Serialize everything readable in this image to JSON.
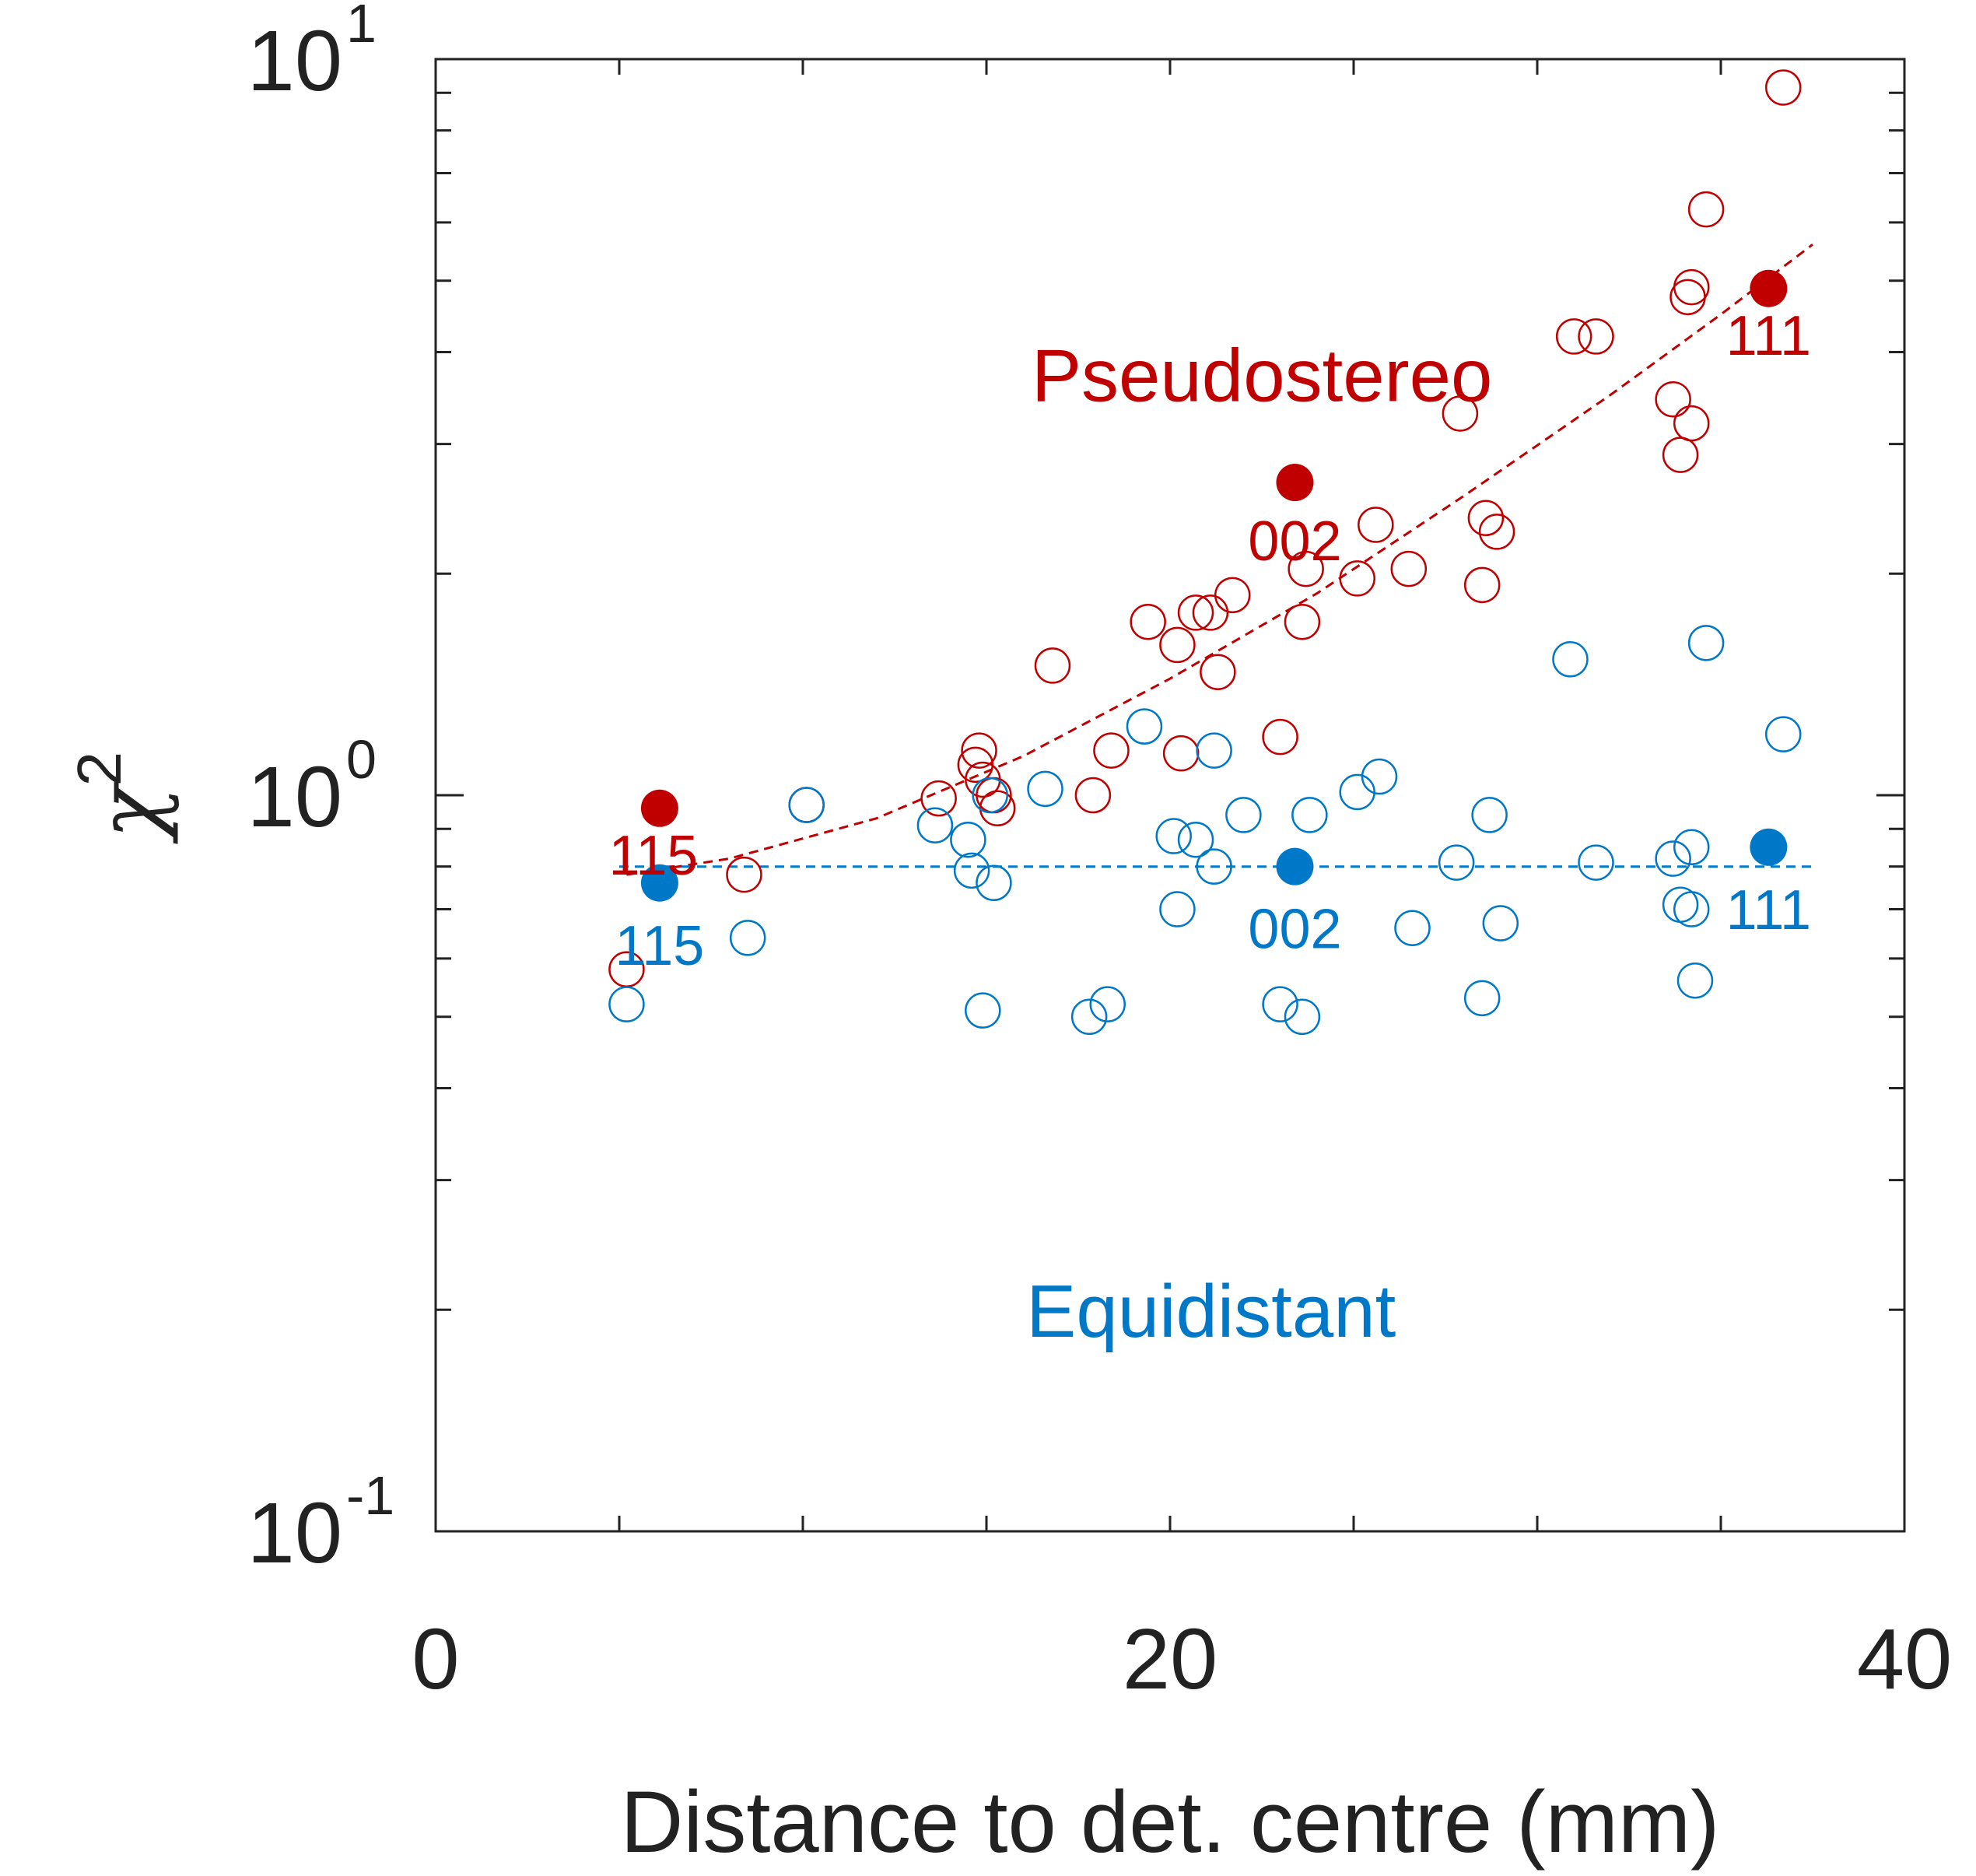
{
  "chart_data": {
    "type": "scatter",
    "title": "",
    "xlabel": "Distance to det. centre (mm)",
    "ylabel": {
      "base": "χ",
      "superscript": "2"
    },
    "xlim": [
      0,
      40
    ],
    "ylim": [
      0.1,
      10
    ],
    "yscale": "log",
    "grid": false,
    "x_ticks": [
      {
        "value": 0,
        "label": "0"
      },
      {
        "value": 20,
        "label": "20"
      },
      {
        "value": 40,
        "label": "40"
      }
    ],
    "x_minor_ticks": [
      5,
      10,
      15,
      25,
      30,
      35
    ],
    "y_ticks": [
      {
        "value": 0.1,
        "base": "10",
        "exp": "-1"
      },
      {
        "value": 1,
        "base": "10",
        "exp": "0"
      },
      {
        "value": 10,
        "base": "10",
        "exp": "1"
      }
    ],
    "y_minor_ticks": [
      0.2,
      0.3,
      0.4,
      0.5,
      0.6,
      0.7,
      0.8,
      0.9,
      2,
      3,
      4,
      5,
      6,
      7,
      8,
      9
    ],
    "series": [
      {
        "name": "Pseudostereo",
        "color": "#c00000",
        "title_position": [
          26,
          3.6
        ],
        "open_points": [
          [
            5.2,
            0.58
          ],
          [
            8.4,
            0.78
          ],
          [
            10.1,
            0.97
          ],
          [
            13.7,
            0.99
          ],
          [
            14.7,
            1.1
          ],
          [
            14.8,
            1.15
          ],
          [
            14.9,
            1.05
          ],
          [
            15.2,
            1.0
          ],
          [
            15.3,
            0.96
          ],
          [
            16.8,
            1.5
          ],
          [
            17.9,
            1.0
          ],
          [
            18.4,
            1.15
          ],
          [
            19.4,
            1.72
          ],
          [
            20.2,
            1.6
          ],
          [
            20.3,
            1.14
          ],
          [
            20.7,
            1.77
          ],
          [
            21.1,
            1.77
          ],
          [
            21.3,
            1.47
          ],
          [
            21.7,
            1.87
          ],
          [
            23.0,
            1.2
          ],
          [
            23.6,
            1.72
          ],
          [
            23.7,
            2.03
          ],
          [
            25.1,
            1.97
          ],
          [
            25.6,
            2.33
          ],
          [
            26.5,
            2.03
          ],
          [
            27.9,
            3.3
          ],
          [
            28.5,
            1.93
          ],
          [
            28.6,
            2.38
          ],
          [
            28.9,
            2.28
          ],
          [
            31.0,
            4.2
          ],
          [
            31.6,
            4.2
          ],
          [
            33.7,
            3.45
          ],
          [
            33.9,
            2.9
          ],
          [
            34.2,
            3.2
          ],
          [
            34.1,
            4.75
          ],
          [
            34.2,
            4.9
          ],
          [
            34.6,
            6.25
          ],
          [
            36.7,
            9.15
          ]
        ],
        "highlighted": [
          {
            "x": 6.1,
            "y": 0.96,
            "label": "115"
          },
          {
            "x": 23.4,
            "y": 2.66,
            "label": "002"
          },
          {
            "x": 36.3,
            "y": 4.88,
            "label": "111"
          }
        ],
        "fit_line": [
          [
            5.2,
            0.78
          ],
          [
            8,
            0.82
          ],
          [
            12,
            0.93
          ],
          [
            16,
            1.13
          ],
          [
            20,
            1.44
          ],
          [
            24,
            1.88
          ],
          [
            28,
            2.55
          ],
          [
            32,
            3.5
          ],
          [
            35,
            4.5
          ],
          [
            37.5,
            5.6
          ]
        ]
      },
      {
        "name": "Equidistant",
        "color": "#0078c8",
        "title_position": [
          16.5,
          0.2
        ],
        "open_points": [
          [
            5.2,
            0.52
          ],
          [
            8.5,
            0.64
          ],
          [
            10.1,
            0.97
          ],
          [
            13.6,
            0.91
          ],
          [
            14.5,
            0.87
          ],
          [
            14.6,
            0.79
          ],
          [
            14.9,
            0.51
          ],
          [
            15.1,
            1.0
          ],
          [
            15.2,
            0.76
          ],
          [
            16.6,
            1.02
          ],
          [
            17.8,
            0.5
          ],
          [
            18.3,
            0.52
          ],
          [
            19.3,
            1.24
          ],
          [
            20.1,
            0.88
          ],
          [
            20.2,
            0.7
          ],
          [
            20.7,
            0.87
          ],
          [
            21.2,
            0.8
          ],
          [
            21.2,
            1.15
          ],
          [
            22.0,
            0.94
          ],
          [
            23.0,
            0.52
          ],
          [
            23.6,
            0.5
          ],
          [
            23.8,
            0.94
          ],
          [
            25.1,
            1.01
          ],
          [
            25.7,
            1.06
          ],
          [
            26.6,
            0.66
          ],
          [
            27.8,
            0.81
          ],
          [
            28.5,
            0.53
          ],
          [
            28.7,
            0.94
          ],
          [
            29.0,
            0.67
          ],
          [
            30.9,
            1.53
          ],
          [
            31.6,
            0.81
          ],
          [
            33.7,
            0.82
          ],
          [
            33.9,
            0.71
          ],
          [
            34.2,
            0.85
          ],
          [
            34.2,
            0.7
          ],
          [
            34.3,
            0.56
          ],
          [
            34.6,
            1.61
          ],
          [
            36.7,
            1.21
          ]
        ],
        "highlighted": [
          {
            "x": 6.1,
            "y": 0.76,
            "label": "115"
          },
          {
            "x": 23.4,
            "y": 0.8,
            "label": "002"
          },
          {
            "x": 36.3,
            "y": 0.85,
            "label": "111"
          }
        ],
        "fit_line": [
          [
            5.0,
            0.8
          ],
          [
            37.6,
            0.8
          ]
        ]
      }
    ]
  }
}
